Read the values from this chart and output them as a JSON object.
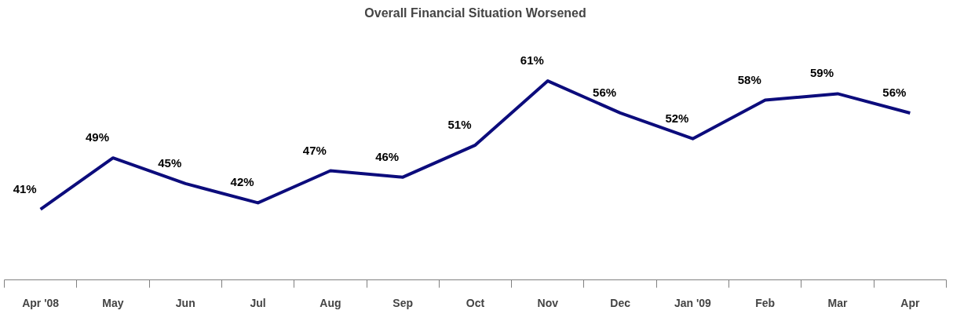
{
  "chart_data": {
    "type": "line",
    "title": "Overall Financial Situation Worsened",
    "categories": [
      "Apr '08",
      "May",
      "Jun",
      "Jul",
      "Aug",
      "Sep",
      "Oct",
      "Nov",
      "Dec",
      "Jan '09",
      "Feb",
      "Mar",
      "Apr"
    ],
    "series": [
      {
        "color": "#0c0c7c",
        "values": [
          41,
          49,
          45,
          42,
          47,
          46,
          51,
          61,
          56,
          52,
          58,
          59,
          56
        ],
        "value_labels": [
          "41%",
          "49%",
          "45%",
          "42%",
          "47%",
          "46%",
          "51%",
          "61%",
          "56%",
          "52%",
          "58%",
          "59%",
          "56%"
        ]
      }
    ],
    "tick_labels": "x",
    "marker": "none",
    "line_style": "solid"
  }
}
